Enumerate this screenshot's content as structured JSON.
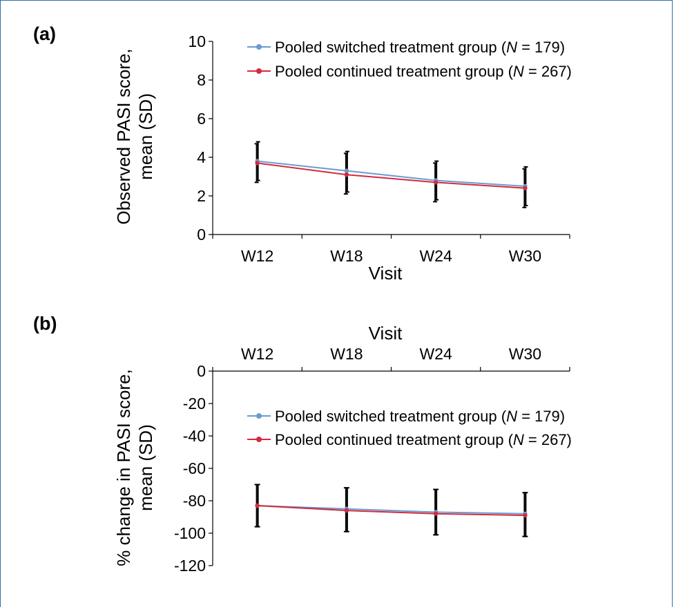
{
  "colors": {
    "switched": "#6a9ad2",
    "continued": "#d32a3e",
    "error_bar": "#000000",
    "border": "#2f6fa8"
  },
  "chart_data": [
    {
      "panel_label": "(a)",
      "type": "line",
      "categories": [
        "W12",
        "W18",
        "W24",
        "W30"
      ],
      "xlabel": "Visit",
      "ylabel_lines": [
        "Observed PASI score,",
        "mean (SD)"
      ],
      "ylim": [
        0,
        10
      ],
      "yticks": [
        0,
        2,
        4,
        6,
        8,
        10
      ],
      "legend": [
        {
          "prefix": "Pooled switched treatment group (",
          "n_symbol": "N",
          "suffix": " = 179)"
        },
        {
          "prefix": "Pooled continued treatment group (",
          "n_symbol": "N",
          "suffix": " = 267)"
        }
      ],
      "series": [
        {
          "values": [
            3.8,
            3.3,
            2.8,
            2.5
          ],
          "err_low": [
            2.8,
            2.2,
            1.8,
            1.5
          ],
          "err_high": [
            4.8,
            4.3,
            3.8,
            3.5
          ]
        },
        {
          "values": [
            3.7,
            3.1,
            2.7,
            2.4
          ],
          "err_low": [
            2.7,
            2.1,
            1.7,
            1.4
          ],
          "err_high": [
            4.7,
            4.2,
            3.7,
            3.4
          ]
        }
      ]
    },
    {
      "panel_label": "(b)",
      "type": "line",
      "categories": [
        "W12",
        "W18",
        "W24",
        "W30"
      ],
      "xlabel": "Visit",
      "ylabel_lines": [
        "% change in PASI score,",
        "mean (SD)"
      ],
      "ylim": [
        -120,
        0
      ],
      "yticks": [
        0,
        -20,
        -40,
        -60,
        -80,
        -100,
        -120
      ],
      "legend": [
        {
          "prefix": "Pooled switched treatment group (",
          "n_symbol": "N",
          "suffix": " = 179)"
        },
        {
          "prefix": "Pooled continued treatment group (",
          "n_symbol": "N",
          "suffix": " = 267)"
        }
      ],
      "series": [
        {
          "values": [
            -83,
            -85,
            -87,
            -88
          ],
          "err_low": [
            -96,
            -99,
            -101,
            -102
          ],
          "err_high": [
            -70,
            -72,
            -73,
            -75
          ]
        },
        {
          "values": [
            -83,
            -86,
            -88,
            -89
          ],
          "err_low": [
            -96,
            -99,
            -101,
            -102
          ],
          "err_high": [
            -70,
            -72,
            -73,
            -75
          ]
        }
      ]
    }
  ]
}
